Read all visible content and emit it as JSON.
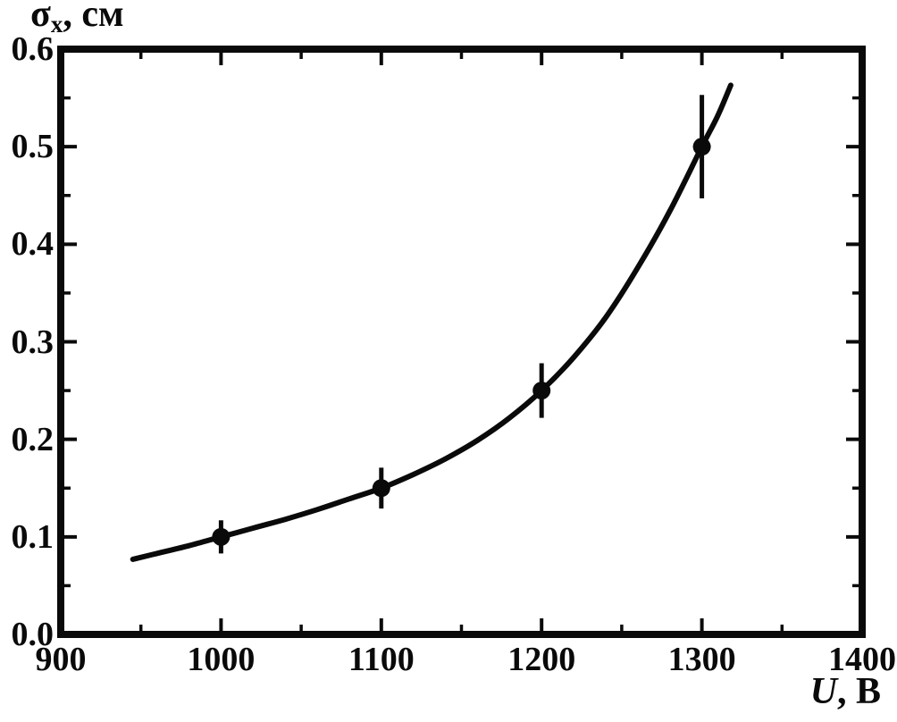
{
  "page": {
    "background": "#ffffff"
  },
  "y_axis_title": {
    "symbol": "σ",
    "subscript": "x",
    "rest": ", см"
  },
  "x_axis_title": {
    "symbol": "U",
    "rest": ", В"
  },
  "chart_data": {
    "type": "scatter",
    "title": "",
    "xlabel": "U, В",
    "ylabel": "σx, см",
    "xlim": [
      900,
      1400
    ],
    "ylim": [
      0.0,
      0.6
    ],
    "grid": false,
    "legend_position": "none",
    "x": [
      1000,
      1100,
      1200,
      1300
    ],
    "y": [
      0.1,
      0.15,
      0.25,
      0.5
    ],
    "y_err": [
      0.017,
      0.021,
      0.028,
      0.053
    ],
    "x_major_ticks": [
      900,
      1000,
      1100,
      1200,
      1300,
      1400
    ],
    "x_minor_ticks": [
      950,
      1050,
      1150,
      1250,
      1350
    ],
    "y_major_ticks": [
      0.0,
      0.1,
      0.2,
      0.3,
      0.4,
      0.5,
      0.6
    ],
    "y_minor_ticks": [
      0.05,
      0.15,
      0.25,
      0.35,
      0.45,
      0.55
    ],
    "x_tick_labels": [
      "900",
      "1000",
      "1100",
      "1200",
      "1300",
      "1400"
    ],
    "y_tick_labels": [
      "0.0",
      "0.1",
      "0.2",
      "0.3",
      "0.4",
      "0.5",
      "0.6"
    ],
    "fit_curve": {
      "U": [
        945,
        960,
        980,
        1000,
        1020,
        1040,
        1060,
        1080,
        1100,
        1120,
        1140,
        1160,
        1180,
        1200,
        1220,
        1240,
        1260,
        1280,
        1300,
        1310,
        1318
      ],
      "sigma": [
        0.077,
        0.083,
        0.091,
        0.1,
        0.109,
        0.118,
        0.128,
        0.139,
        0.15,
        0.164,
        0.18,
        0.199,
        0.222,
        0.25,
        0.284,
        0.325,
        0.376,
        0.434,
        0.5,
        0.532,
        0.563
      ]
    },
    "colors": {
      "line": "#0a0a0a",
      "marker": "#0a0a0a",
      "error_bar": "#0a0a0a",
      "frame": "#0a0a0a",
      "text": "#0a0a0a",
      "background": "#ffffff"
    }
  }
}
